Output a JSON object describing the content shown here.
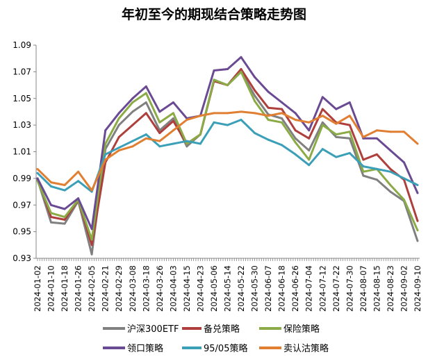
{
  "chart_data": {
    "type": "line",
    "title": "年初至今的期现结合策略走势图",
    "xlabel": "",
    "ylabel": "",
    "ylim": [
      0.93,
      1.09
    ],
    "yticks": [
      "0.93",
      "0.95",
      "0.97",
      "0.99",
      "1.01",
      "1.03",
      "1.05",
      "1.07",
      "1.09"
    ],
    "grid": false,
    "legend_position": "bottom",
    "categories": [
      "2024-01-02",
      "2024-01-10",
      "2024-01-18",
      "2024-01-26",
      "2024-02-05",
      "2024-02-21",
      "2024-02-29",
      "2024-03-08",
      "2024-03-18",
      "2024-03-26",
      "2024-04-03",
      "2024-04-15",
      "2024-04-23",
      "2024-05-06",
      "2024-05-14",
      "2024-05-22",
      "2024-05-30",
      "2024-06-07",
      "2024-06-18",
      "2024-06-26",
      "2024-07-04",
      "2024-07-12",
      "2024-07-22",
      "2024-07-30",
      "2024-08-07",
      "2024-08-15",
      "2024-08-23",
      "2024-09-02",
      "2024-09-10"
    ],
    "series": [
      {
        "name": "沪深300ETF",
        "color": "#808080",
        "values": [
          0.989,
          0.957,
          0.956,
          0.973,
          0.933,
          1.012,
          1.03,
          1.04,
          1.047,
          1.026,
          1.035,
          1.014,
          1.023,
          1.064,
          1.06,
          1.07,
          1.052,
          1.038,
          1.035,
          1.02,
          1.011,
          1.032,
          1.021,
          1.02,
          0.992,
          0.989,
          0.98,
          0.973,
          0.943
        ]
      },
      {
        "name": "备兑策略",
        "color": "#ae3f3c",
        "values": [
          0.99,
          0.961,
          0.959,
          0.974,
          0.94,
          1.002,
          1.021,
          1.03,
          1.039,
          1.024,
          1.033,
          1.016,
          1.023,
          1.063,
          1.06,
          1.072,
          1.056,
          1.043,
          1.042,
          1.026,
          1.02,
          1.042,
          1.032,
          1.03,
          1.004,
          1.008,
          0.997,
          0.989,
          0.958
        ]
      },
      {
        "name": "保险策略",
        "color": "#8aab45",
        "values": [
          0.988,
          0.964,
          0.961,
          0.974,
          0.944,
          1.016,
          1.035,
          1.047,
          1.054,
          1.032,
          1.039,
          1.016,
          1.023,
          1.064,
          1.06,
          1.07,
          1.048,
          1.034,
          1.032,
          1.017,
          1.004,
          1.03,
          1.023,
          1.025,
          0.995,
          0.997,
          0.985,
          0.974,
          0.951
        ]
      },
      {
        "name": "领口策略",
        "color": "#6a4b93",
        "values": [
          0.99,
          0.97,
          0.967,
          0.975,
          0.952,
          1.026,
          1.039,
          1.05,
          1.059,
          1.04,
          1.047,
          1.035,
          1.037,
          1.071,
          1.072,
          1.081,
          1.066,
          1.055,
          1.047,
          1.039,
          1.026,
          1.051,
          1.042,
          1.047,
          1.02,
          1.02,
          1.011,
          1.002,
          0.979
        ]
      },
      {
        "name": "95/05策略",
        "color": "#3a9fb7",
        "values": [
          0.994,
          0.984,
          0.981,
          0.988,
          0.98,
          1.008,
          1.013,
          1.018,
          1.023,
          1.014,
          1.016,
          1.018,
          1.016,
          1.032,
          1.03,
          1.034,
          1.024,
          1.019,
          1.015,
          1.008,
          1.0,
          1.012,
          1.006,
          1.009,
          0.999,
          0.997,
          0.995,
          0.99,
          0.985
        ]
      },
      {
        "name": "卖认沽策略",
        "color": "#e07f32",
        "values": [
          0.997,
          0.987,
          0.985,
          0.995,
          0.981,
          1.004,
          1.011,
          1.014,
          1.02,
          1.018,
          1.026,
          1.034,
          1.037,
          1.039,
          1.039,
          1.04,
          1.039,
          1.037,
          1.039,
          1.034,
          1.032,
          1.037,
          1.031,
          1.037,
          1.021,
          1.026,
          1.025,
          1.025,
          1.016
        ]
      }
    ]
  }
}
